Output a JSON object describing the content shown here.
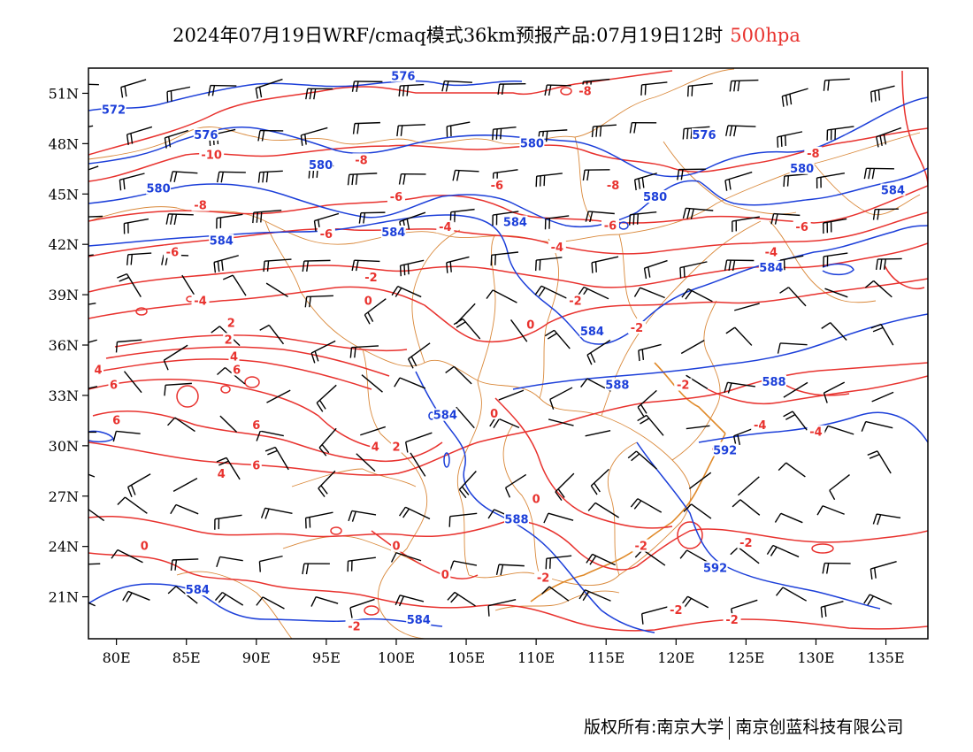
{
  "title": {
    "main": "2024年07月19日WRF/cmaq模式36km预报产品:07月19日12时",
    "level": "500hpa",
    "level_color": "#e8322e"
  },
  "footer": {
    "left": "版权所有:南京大学",
    "right": "南京创蓝科技有限公司"
  },
  "colors": {
    "temperature": "#e8322e",
    "height": "#1c3fd9",
    "boundary": "#d9883a",
    "wind": "#000000"
  },
  "chart_data": {
    "type": "map",
    "lon_ticks": [
      "80E",
      "85E",
      "90E",
      "95E",
      "100E",
      "105E",
      "110E",
      "115E",
      "120E",
      "125E",
      "130E",
      "135E"
    ],
    "lat_ticks": [
      "51N",
      "48N",
      "45N",
      "42N",
      "39N",
      "36N",
      "33N",
      "30N",
      "27N",
      "24N",
      "21N"
    ],
    "lon_range": [
      78,
      138
    ],
    "lat_range": [
      18.5,
      52.5
    ],
    "temperature_labels": [
      {
        "text": "-8",
        "lon": 113.5,
        "lat": 51.1
      },
      {
        "text": "-10",
        "lon": 86.8,
        "lat": 47.3
      },
      {
        "text": "-8",
        "lon": 97.5,
        "lat": 47.0
      },
      {
        "text": "-8",
        "lon": 129.8,
        "lat": 47.4
      },
      {
        "text": "-8",
        "lon": 115.5,
        "lat": 45.5
      },
      {
        "text": "-8",
        "lon": 86.0,
        "lat": 44.3
      },
      {
        "text": "-6",
        "lon": 107.2,
        "lat": 45.5
      },
      {
        "text": "-6",
        "lon": 100.0,
        "lat": 44.8
      },
      {
        "text": "-6",
        "lon": 95.0,
        "lat": 42.6
      },
      {
        "text": "-6",
        "lon": 115.3,
        "lat": 43.1
      },
      {
        "text": "-6",
        "lon": 129.0,
        "lat": 43.0
      },
      {
        "text": "-4",
        "lon": 103.5,
        "lat": 43.0
      },
      {
        "text": "-4",
        "lon": 111.5,
        "lat": 41.8
      },
      {
        "text": "-4",
        "lon": 126.8,
        "lat": 41.5
      },
      {
        "text": "-6",
        "lon": 84.0,
        "lat": 41.5
      },
      {
        "text": "-2",
        "lon": 98.2,
        "lat": 40.0
      },
      {
        "text": "-4",
        "lon": 86.0,
        "lat": 38.6
      },
      {
        "text": "0",
        "lon": 98.0,
        "lat": 38.6
      },
      {
        "text": "-2",
        "lon": 112.8,
        "lat": 38.6
      },
      {
        "text": "0",
        "lon": 109.6,
        "lat": 37.2
      },
      {
        "text": "-2",
        "lon": 117.2,
        "lat": 37.0
      },
      {
        "text": "2",
        "lon": 88.2,
        "lat": 37.3
      },
      {
        "text": "2",
        "lon": 88.0,
        "lat": 36.3
      },
      {
        "text": "4",
        "lon": 88.4,
        "lat": 35.3
      },
      {
        "text": "6",
        "lon": 88.6,
        "lat": 34.5
      },
      {
        "text": "4",
        "lon": 78.7,
        "lat": 34.5
      },
      {
        "text": "6",
        "lon": 79.8,
        "lat": 33.6
      },
      {
        "text": "6",
        "lon": 80.0,
        "lat": 31.5
      },
      {
        "text": "6",
        "lon": 90.0,
        "lat": 31.2
      },
      {
        "text": "0",
        "lon": 107.0,
        "lat": 31.9
      },
      {
        "text": "-2",
        "lon": 120.5,
        "lat": 33.6
      },
      {
        "text": "-4",
        "lon": 126.0,
        "lat": 31.2
      },
      {
        "text": "-4",
        "lon": 130.0,
        "lat": 30.8
      },
      {
        "text": "4",
        "lon": 98.5,
        "lat": 29.9
      },
      {
        "text": "2",
        "lon": 100.0,
        "lat": 29.9
      },
      {
        "text": "6",
        "lon": 90.0,
        "lat": 28.8
      },
      {
        "text": "4",
        "lon": 87.5,
        "lat": 28.3
      },
      {
        "text": "-2",
        "lon": 123.0,
        "lat": 29.8
      },
      {
        "text": "0",
        "lon": 110.0,
        "lat": 26.8
      },
      {
        "text": "0",
        "lon": 82.0,
        "lat": 24.0
      },
      {
        "text": "0",
        "lon": 100.0,
        "lat": 24.0
      },
      {
        "text": "0",
        "lon": 103.5,
        "lat": 22.3
      },
      {
        "text": "-2",
        "lon": 117.5,
        "lat": 24.0
      },
      {
        "text": "-2",
        "lon": 125.0,
        "lat": 24.2
      },
      {
        "text": "-2",
        "lon": 110.5,
        "lat": 22.1
      },
      {
        "text": "-2",
        "lon": 120.0,
        "lat": 20.2
      },
      {
        "text": "-2",
        "lon": 124.0,
        "lat": 19.6
      },
      {
        "text": "-2",
        "lon": 97.0,
        "lat": 19.2
      }
    ],
    "height_labels": [
      {
        "text": "576",
        "lon": 100.5,
        "lat": 52.0
      },
      {
        "text": "572",
        "lon": 79.8,
        "lat": 50.0
      },
      {
        "text": "576",
        "lon": 86.4,
        "lat": 48.5
      },
      {
        "text": "580",
        "lon": 109.7,
        "lat": 48.0
      },
      {
        "text": "576",
        "lon": 122.0,
        "lat": 48.5
      },
      {
        "text": "580",
        "lon": 94.6,
        "lat": 46.7
      },
      {
        "text": "580",
        "lon": 83.0,
        "lat": 45.3
      },
      {
        "text": "580",
        "lon": 129.0,
        "lat": 46.5
      },
      {
        "text": "580",
        "lon": 118.5,
        "lat": 44.8
      },
      {
        "text": "584",
        "lon": 135.5,
        "lat": 45.2
      },
      {
        "text": "584",
        "lon": 99.8,
        "lat": 42.7
      },
      {
        "text": "584",
        "lon": 108.5,
        "lat": 43.3
      },
      {
        "text": "584",
        "lon": 87.5,
        "lat": 42.2
      },
      {
        "text": "584",
        "lon": 126.8,
        "lat": 40.6
      },
      {
        "text": "584",
        "lon": 114.0,
        "lat": 36.8
      },
      {
        "text": "588",
        "lon": 115.8,
        "lat": 33.6
      },
      {
        "text": "588",
        "lon": 127.0,
        "lat": 33.8
      },
      {
        "text": "584",
        "lon": 103.5,
        "lat": 31.8
      },
      {
        "text": "592",
        "lon": 123.5,
        "lat": 29.7
      },
      {
        "text": "588",
        "lon": 108.6,
        "lat": 25.6
      },
      {
        "text": "592",
        "lon": 122.8,
        "lat": 22.7
      },
      {
        "text": "584",
        "lon": 85.8,
        "lat": 21.4
      },
      {
        "text": "584",
        "lon": 101.6,
        "lat": 19.6
      }
    ]
  }
}
